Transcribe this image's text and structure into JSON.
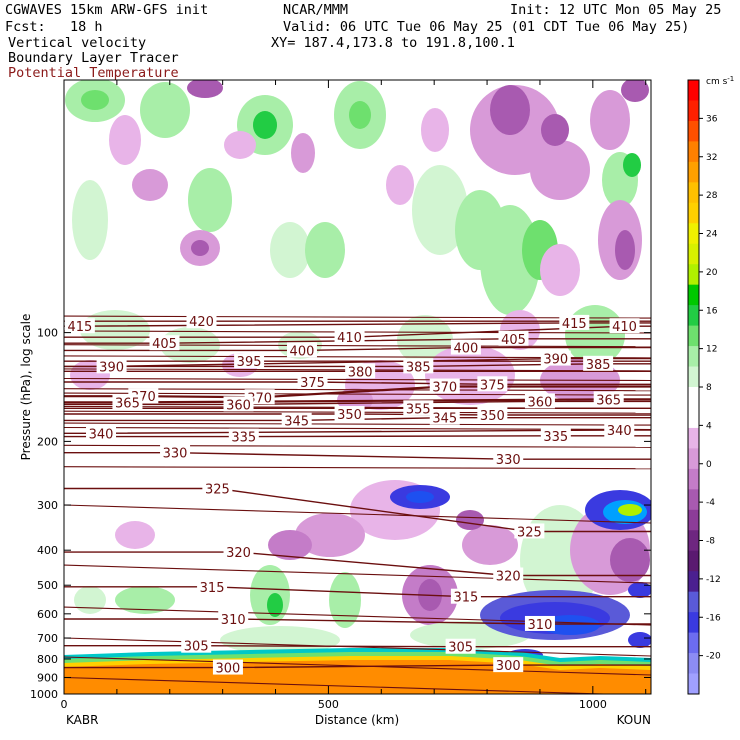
{
  "header": {
    "model": "CGWAVES 15km ARW-GFS init",
    "org": "NCAR/MMM",
    "init": "Init: 12 UTC Mon 05 May 25",
    "fcst": "Fcst:   18 h",
    "valid": "Valid: 06 UTC Tue 06 May 25 (01 CDT Tue 06 May 25)",
    "field1": "Vertical velocity",
    "field2": "Boundary Layer Tracer",
    "field3": "Potential Temperature",
    "xy": "XY= 187.4,173.8 to 191.8,100.1"
  },
  "colors": {
    "theta": "#6b0f0f",
    "tracer": "#ff8c00",
    "negative": [
      "#e8b4e8",
      "#d89ad8",
      "#c47cc8",
      "#a85ab0",
      "#8c3c98",
      "#6e2680",
      "#5a5ad8",
      "#3a3ae0",
      "#1e50f0"
    ],
    "positive": [
      "#d2f5d2",
      "#a8eea8",
      "#6ee06e",
      "#22cc44",
      "#00c8c8",
      "#00a0ff",
      "#b0f000",
      "#f0f000",
      "#ffd000",
      "#ffa000",
      "#ff8000",
      "#ff5000",
      "#ff0000"
    ]
  },
  "chart_data": {
    "type": "contour-cross-section",
    "ylabel": "Pressure (hPa), log scale",
    "xlabel": "Distance (km)",
    "x_endpoints": {
      "left": "KABR",
      "right": "KOUN"
    },
    "xlim": [
      0,
      1110
    ],
    "x_ticks": [
      0,
      500,
      1000
    ],
    "ylim": [
      1000,
      20
    ],
    "y_ticks": [
      100,
      200,
      300,
      400,
      500,
      600,
      700,
      800,
      900,
      1000
    ],
    "colorbar": {
      "unit": "cm s",
      "unit_exp": "-1",
      "ticks": [
        36,
        32,
        28,
        24,
        20,
        16,
        12,
        8,
        4,
        0,
        -4,
        -8,
        -12,
        -16,
        -20
      ]
    },
    "theta_labels": [
      {
        "v": "415",
        "x": 30,
        "p": 96
      },
      {
        "v": "420",
        "x": 260,
        "p": 93
      },
      {
        "v": "410",
        "x": 540,
        "p": 103
      },
      {
        "v": "415",
        "x": 965,
        "p": 94
      },
      {
        "v": "410",
        "x": 1060,
        "p": 96
      },
      {
        "v": "405",
        "x": 190,
        "p": 107
      },
      {
        "v": "400",
        "x": 450,
        "p": 112
      },
      {
        "v": "400",
        "x": 760,
        "p": 110
      },
      {
        "v": "405",
        "x": 850,
        "p": 104
      },
      {
        "v": "390",
        "x": 930,
        "p": 118
      },
      {
        "v": "390",
        "x": 90,
        "p": 124
      },
      {
        "v": "395",
        "x": 350,
        "p": 120
      },
      {
        "v": "380",
        "x": 560,
        "p": 128
      },
      {
        "v": "385",
        "x": 670,
        "p": 124
      },
      {
        "v": "385",
        "x": 1010,
        "p": 122
      },
      {
        "v": "375",
        "x": 470,
        "p": 137
      },
      {
        "v": "370",
        "x": 150,
        "p": 150
      },
      {
        "v": "370",
        "x": 370,
        "p": 151
      },
      {
        "v": "370",
        "x": 720,
        "p": 141
      },
      {
        "v": "375",
        "x": 810,
        "p": 139
      },
      {
        "v": "365",
        "x": 120,
        "p": 156
      },
      {
        "v": "360",
        "x": 330,
        "p": 158
      },
      {
        "v": "355",
        "x": 670,
        "p": 162
      },
      {
        "v": "360",
        "x": 900,
        "p": 155
      },
      {
        "v": "365",
        "x": 1030,
        "p": 153
      },
      {
        "v": "350",
        "x": 540,
        "p": 168
      },
      {
        "v": "345",
        "x": 440,
        "p": 175
      },
      {
        "v": "345",
        "x": 720,
        "p": 172
      },
      {
        "v": "350",
        "x": 810,
        "p": 169
      },
      {
        "v": "340",
        "x": 70,
        "p": 190
      },
      {
        "v": "335",
        "x": 340,
        "p": 194
      },
      {
        "v": "335",
        "x": 930,
        "p": 193
      },
      {
        "v": "340",
        "x": 1050,
        "p": 186
      },
      {
        "v": "330",
        "x": 210,
        "p": 215
      },
      {
        "v": "330",
        "x": 840,
        "p": 224
      },
      {
        "v": "325",
        "x": 290,
        "p": 270
      },
      {
        "v": "325",
        "x": 880,
        "p": 355
      },
      {
        "v": "320",
        "x": 330,
        "p": 405
      },
      {
        "v": "320",
        "x": 840,
        "p": 470
      },
      {
        "v": "315",
        "x": 280,
        "p": 505
      },
      {
        "v": "315",
        "x": 760,
        "p": 538
      },
      {
        "v": "310",
        "x": 320,
        "p": 620
      },
      {
        "v": "310",
        "x": 900,
        "p": 640
      },
      {
        "v": "305",
        "x": 250,
        "p": 735
      },
      {
        "v": "305",
        "x": 750,
        "p": 740
      },
      {
        "v": "300",
        "x": 310,
        "p": 845
      },
      {
        "v": "300",
        "x": 840,
        "p": 832
      }
    ]
  }
}
